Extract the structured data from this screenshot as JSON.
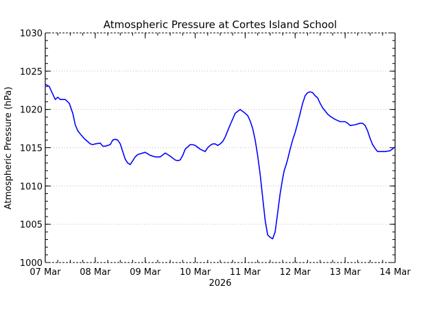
{
  "chart_data": {
    "type": "line",
    "title": "Atmospheric Pressure at Cortes Island School",
    "xlabel": "2026",
    "ylabel": "Atmospheric Pressure (hPa)",
    "ylim": [
      1000,
      1030
    ],
    "xlim": [
      0,
      7
    ],
    "grid": true,
    "legend": null,
    "x_tick_labels": [
      "07 Mar",
      "08 Mar",
      "09 Mar",
      "10 Mar",
      "11 Mar",
      "12 Mar",
      "13 Mar",
      "14 Mar"
    ],
    "y_tick_labels": [
      "1000",
      "1005",
      "1010",
      "1015",
      "1020",
      "1025",
      "1030"
    ],
    "series": [
      {
        "name": "Atmospheric Pressure",
        "color": "#0000ff",
        "x_days": [
          0.0,
          0.08,
          0.15,
          0.2,
          0.25,
          0.3,
          0.4,
          0.48,
          0.55,
          0.6,
          0.65,
          0.7,
          0.78,
          0.85,
          0.9,
          0.95,
          1.0,
          1.1,
          1.15,
          1.2,
          1.3,
          1.35,
          1.4,
          1.45,
          1.5,
          1.55,
          1.6,
          1.65,
          1.7,
          1.75,
          1.8,
          1.85,
          1.9,
          1.95,
          2.0,
          2.1,
          2.2,
          2.3,
          2.4,
          2.45,
          2.5,
          2.6,
          2.65,
          2.7,
          2.75,
          2.8,
          2.9,
          2.95,
          3.0,
          3.1,
          3.2,
          3.25,
          3.3,
          3.35,
          3.4,
          3.45,
          3.5,
          3.55,
          3.6,
          3.65,
          3.7,
          3.8,
          3.9,
          4.0,
          4.05,
          4.1,
          4.15,
          4.2,
          4.25,
          4.3,
          4.35,
          4.4,
          4.45,
          4.5,
          4.55,
          4.6,
          4.65,
          4.7,
          4.75,
          4.78,
          4.82,
          4.85,
          4.9,
          4.95,
          5.0,
          5.05,
          5.1,
          5.15,
          5.2,
          5.25,
          5.3,
          5.35,
          5.4,
          5.45,
          5.5,
          5.55,
          5.6,
          5.65,
          5.7,
          5.8,
          5.9,
          6.0,
          6.05,
          6.1,
          6.2,
          6.3,
          6.35,
          6.4,
          6.45,
          6.5,
          6.55,
          6.6,
          6.65,
          6.7,
          6.75,
          6.8,
          6.9,
          7.0
        ],
        "values": [
          1023.3,
          1023.0,
          1022.0,
          1021.3,
          1021.6,
          1021.3,
          1021.3,
          1020.8,
          1019.5,
          1018.0,
          1017.2,
          1016.8,
          1016.2,
          1015.8,
          1015.5,
          1015.4,
          1015.5,
          1015.6,
          1015.2,
          1015.2,
          1015.4,
          1016.0,
          1016.1,
          1016.0,
          1015.5,
          1014.5,
          1013.5,
          1013.0,
          1012.8,
          1013.3,
          1013.8,
          1014.1,
          1014.2,
          1014.3,
          1014.4,
          1014.0,
          1013.8,
          1013.8,
          1014.3,
          1014.1,
          1013.9,
          1013.4,
          1013.3,
          1013.4,
          1014.0,
          1014.8,
          1015.4,
          1015.4,
          1015.3,
          1014.8,
          1014.5,
          1015.0,
          1015.3,
          1015.5,
          1015.5,
          1015.3,
          1015.5,
          1015.8,
          1016.4,
          1017.2,
          1018.0,
          1019.5,
          1020.0,
          1019.5,
          1019.2,
          1018.5,
          1017.5,
          1016.0,
          1014.0,
          1011.5,
          1008.5,
          1005.5,
          1003.6,
          1003.3,
          1003.1,
          1004.0,
          1006.5,
          1009.0,
          1011.0,
          1012.0,
          1012.8,
          1013.5,
          1014.8,
          1016.0,
          1017.0,
          1018.2,
          1019.5,
          1020.8,
          1021.8,
          1022.2,
          1022.3,
          1022.2,
          1021.8,
          1021.5,
          1020.8,
          1020.2,
          1019.8,
          1019.4,
          1019.1,
          1018.7,
          1018.4,
          1018.4,
          1018.2,
          1017.9,
          1018.0,
          1018.2,
          1018.2,
          1017.9,
          1017.2,
          1016.2,
          1015.4,
          1014.9,
          1014.5,
          1014.5,
          1014.5,
          1014.5,
          1014.6,
          1015.1
        ]
      }
    ]
  },
  "colors": {
    "background": "#ffffff",
    "line": "#0000ff",
    "axis": "#000000",
    "grid": "#bbbbbb"
  }
}
